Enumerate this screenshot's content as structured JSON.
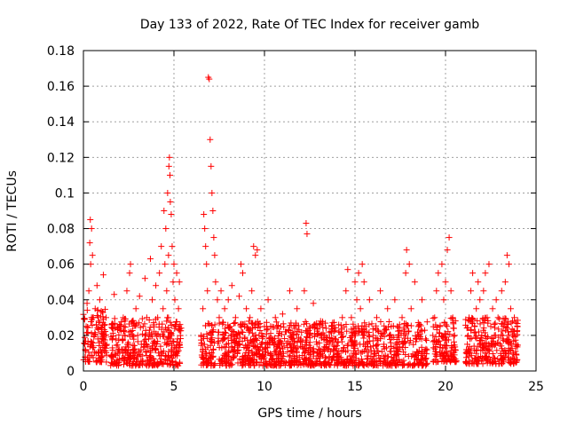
{
  "chart_data": {
    "type": "scatter",
    "title": "Day 133 of 2022, Rate Of TEC Index for receiver gamb",
    "xlabel": "GPS time / hours",
    "ylabel": "ROTI / TECUs",
    "xlim": [
      0,
      25
    ],
    "ylim": [
      0,
      0.18
    ],
    "xticks": [
      "0",
      "5",
      "10",
      "15",
      "20",
      "25"
    ],
    "yticks": [
      "0",
      "0.02",
      "0.04",
      "0.06",
      "0.08",
      "0.1",
      "0.12",
      "0.14",
      "0.16",
      "0.18"
    ],
    "grid": true,
    "marker": "plus",
    "color": "#ff0000",
    "series": [
      {
        "points": [
          [
            0.1,
            0.012
          ],
          [
            0.15,
            0.025
          ],
          [
            0.2,
            0.038
          ],
          [
            0.25,
            0.015
          ],
          [
            0.3,
            0.045
          ],
          [
            0.35,
            0.072
          ],
          [
            0.38,
            0.085
          ],
          [
            0.4,
            0.06
          ],
          [
            0.45,
            0.08
          ],
          [
            0.5,
            0.065
          ],
          [
            0.55,
            0.03
          ],
          [
            0.6,
            0.02
          ],
          [
            0.65,
            0.035
          ],
          [
            0.7,
            0.01
          ],
          [
            0.75,
            0.048
          ],
          [
            0.8,
            0.018
          ],
          [
            0.85,
            0.028
          ],
          [
            0.9,
            0.04
          ],
          [
            0.95,
            0.012
          ],
          [
            1.0,
            0.022
          ],
          [
            1.05,
            0.033
          ],
          [
            1.1,
            0.054
          ],
          [
            1.15,
            0.02
          ],
          [
            1.2,
            0.015
          ],
          [
            1.25,
            0.03
          ],
          [
            1.6,
            0.013
          ],
          [
            1.7,
            0.043
          ],
          [
            1.8,
            0.018
          ],
          [
            1.9,
            0.01
          ],
          [
            2.0,
            0.025
          ],
          [
            2.1,
            0.012
          ],
          [
            2.2,
            0.03
          ],
          [
            2.3,
            0.02
          ],
          [
            2.4,
            0.045
          ],
          [
            2.5,
            0.015
          ],
          [
            2.55,
            0.055
          ],
          [
            2.6,
            0.06
          ],
          [
            2.7,
            0.028
          ],
          [
            2.8,
            0.012
          ],
          [
            2.9,
            0.035
          ],
          [
            3.0,
            0.02
          ],
          [
            3.1,
            0.042
          ],
          [
            3.2,
            0.015
          ],
          [
            3.3,
            0.025
          ],
          [
            3.4,
            0.052
          ],
          [
            3.5,
            0.03
          ],
          [
            3.6,
            0.018
          ],
          [
            3.7,
            0.063
          ],
          [
            3.8,
            0.04
          ],
          [
            3.9,
            0.022
          ],
          [
            4.0,
            0.048
          ],
          [
            4.1,
            0.03
          ],
          [
            4.2,
            0.055
          ],
          [
            4.3,
            0.07
          ],
          [
            4.4,
            0.035
          ],
          [
            4.45,
            0.09
          ],
          [
            4.5,
            0.06
          ],
          [
            4.55,
            0.08
          ],
          [
            4.6,
            0.045
          ],
          [
            4.65,
            0.1
          ],
          [
            4.7,
            0.065
          ],
          [
            4.72,
            0.115
          ],
          [
            4.75,
            0.12
          ],
          [
            4.78,
            0.11
          ],
          [
            4.8,
            0.095
          ],
          [
            4.85,
            0.088
          ],
          [
            4.9,
            0.07
          ],
          [
            4.95,
            0.05
          ],
          [
            5.0,
            0.06
          ],
          [
            5.05,
            0.04
          ],
          [
            5.1,
            0.025
          ],
          [
            5.15,
            0.055
          ],
          [
            5.2,
            0.018
          ],
          [
            5.25,
            0.035
          ],
          [
            5.3,
            0.05
          ],
          [
            6.5,
            0.02
          ],
          [
            6.6,
            0.035
          ],
          [
            6.65,
            0.088
          ],
          [
            6.7,
            0.08
          ],
          [
            6.75,
            0.07
          ],
          [
            6.8,
            0.06
          ],
          [
            6.85,
            0.045
          ],
          [
            6.9,
            0.165
          ],
          [
            6.95,
            0.164
          ],
          [
            7.0,
            0.13
          ],
          [
            7.05,
            0.115
          ],
          [
            7.1,
            0.1
          ],
          [
            7.15,
            0.09
          ],
          [
            7.2,
            0.075
          ],
          [
            7.25,
            0.065
          ],
          [
            7.3,
            0.05
          ],
          [
            7.4,
            0.04
          ],
          [
            7.5,
            0.03
          ],
          [
            7.6,
            0.045
          ],
          [
            7.7,
            0.02
          ],
          [
            7.8,
            0.035
          ],
          [
            7.9,
            0.015
          ],
          [
            8.0,
            0.04
          ],
          [
            8.1,
            0.025
          ],
          [
            8.2,
            0.048
          ],
          [
            8.3,
            0.012
          ],
          [
            8.4,
            0.03
          ],
          [
            8.5,
            0.02
          ],
          [
            8.6,
            0.042
          ],
          [
            8.7,
            0.06
          ],
          [
            8.8,
            0.055
          ],
          [
            8.9,
            0.025
          ],
          [
            9.0,
            0.035
          ],
          [
            9.1,
            0.015
          ],
          [
            9.2,
            0.03
          ],
          [
            9.3,
            0.045
          ],
          [
            9.4,
            0.07
          ],
          [
            9.5,
            0.065
          ],
          [
            9.6,
            0.068
          ],
          [
            9.7,
            0.02
          ],
          [
            9.8,
            0.035
          ],
          [
            9.9,
            0.012
          ],
          [
            10.0,
            0.025
          ],
          [
            10.2,
            0.04
          ],
          [
            10.4,
            0.018
          ],
          [
            10.6,
            0.03
          ],
          [
            10.8,
            0.015
          ],
          [
            11.0,
            0.032
          ],
          [
            11.2,
            0.022
          ],
          [
            11.4,
            0.045
          ],
          [
            11.6,
            0.02
          ],
          [
            11.8,
            0.035
          ],
          [
            12.0,
            0.018
          ],
          [
            12.2,
            0.045
          ],
          [
            12.3,
            0.083
          ],
          [
            12.35,
            0.077
          ],
          [
            12.5,
            0.025
          ],
          [
            12.7,
            0.038
          ],
          [
            12.9,
            0.015
          ],
          [
            13.1,
            0.028
          ],
          [
            13.3,
            0.02
          ],
          [
            13.5,
            0.012
          ],
          [
            13.7,
            0.025
          ],
          [
            13.9,
            0.018
          ],
          [
            14.1,
            0.022
          ],
          [
            14.3,
            0.03
          ],
          [
            14.5,
            0.045
          ],
          [
            14.6,
            0.057
          ],
          [
            14.8,
            0.03
          ],
          [
            15.0,
            0.05
          ],
          [
            15.1,
            0.04
          ],
          [
            15.2,
            0.055
          ],
          [
            15.3,
            0.035
          ],
          [
            15.4,
            0.06
          ],
          [
            15.5,
            0.05
          ],
          [
            15.6,
            0.025
          ],
          [
            15.8,
            0.04
          ],
          [
            16.0,
            0.02
          ],
          [
            16.2,
            0.03
          ],
          [
            16.4,
            0.045
          ],
          [
            16.6,
            0.015
          ],
          [
            16.8,
            0.035
          ],
          [
            17.0,
            0.025
          ],
          [
            17.2,
            0.04
          ],
          [
            17.4,
            0.02
          ],
          [
            17.6,
            0.03
          ],
          [
            17.8,
            0.055
          ],
          [
            17.85,
            0.068
          ],
          [
            18.0,
            0.06
          ],
          [
            18.1,
            0.035
          ],
          [
            18.3,
            0.05
          ],
          [
            18.5,
            0.025
          ],
          [
            18.7,
            0.04
          ],
          [
            18.9,
            0.018
          ],
          [
            19.3,
            0.02
          ],
          [
            19.4,
            0.03
          ],
          [
            19.5,
            0.045
          ],
          [
            19.6,
            0.055
          ],
          [
            19.7,
            0.025
          ],
          [
            19.8,
            0.06
          ],
          [
            19.9,
            0.04
          ],
          [
            20.0,
            0.05
          ],
          [
            20.1,
            0.068
          ],
          [
            20.2,
            0.075
          ],
          [
            20.3,
            0.045
          ],
          [
            20.4,
            0.03
          ],
          [
            20.5,
            0.02
          ],
          [
            21.2,
            0.015
          ],
          [
            21.3,
            0.03
          ],
          [
            21.4,
            0.045
          ],
          [
            21.5,
            0.055
          ],
          [
            21.6,
            0.025
          ],
          [
            21.7,
            0.035
          ],
          [
            21.8,
            0.05
          ],
          [
            21.9,
            0.04
          ],
          [
            22.0,
            0.02
          ],
          [
            22.1,
            0.045
          ],
          [
            22.2,
            0.055
          ],
          [
            22.3,
            0.03
          ],
          [
            22.4,
            0.06
          ],
          [
            22.5,
            0.025
          ],
          [
            22.6,
            0.035
          ],
          [
            22.7,
            0.02
          ],
          [
            22.8,
            0.04
          ],
          [
            22.9,
            0.03
          ],
          [
            23.0,
            0.015
          ],
          [
            23.1,
            0.045
          ],
          [
            23.2,
            0.025
          ],
          [
            23.3,
            0.05
          ],
          [
            23.4,
            0.065
          ],
          [
            23.5,
            0.06
          ],
          [
            23.6,
            0.035
          ],
          [
            23.7,
            0.02
          ],
          [
            23.8,
            0.03
          ],
          [
            23.9,
            0.015
          ]
        ]
      }
    ],
    "dense_bands": [
      {
        "x": [
          0.0,
          1.3
        ],
        "y_low": 0.005,
        "y_high": 0.035
      },
      {
        "x": [
          1.5,
          5.4
        ],
        "y_low": 0.003,
        "y_high": 0.03
      },
      {
        "x": [
          6.5,
          19.0
        ],
        "y_low": 0.003,
        "y_high": 0.028
      },
      {
        "x": [
          19.3,
          20.6
        ],
        "y_low": 0.005,
        "y_high": 0.03
      },
      {
        "x": [
          21.1,
          24.0
        ],
        "y_low": 0.004,
        "y_high": 0.03
      }
    ]
  }
}
